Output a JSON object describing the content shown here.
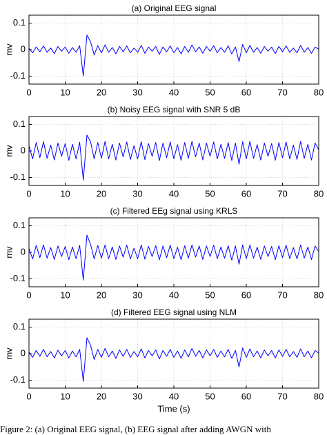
{
  "chart_data": [
    {
      "type": "line",
      "title": "(a) Original EEG signal",
      "ylabel": "mv",
      "color": "#0000ff",
      "grid": true,
      "x": [
        0,
        1,
        2,
        3,
        4,
        5,
        6,
        7,
        8,
        9,
        10,
        11,
        12,
        13,
        14,
        15,
        16,
        17,
        18,
        19,
        20,
        21,
        22,
        23,
        24,
        25,
        26,
        27,
        28,
        29,
        30,
        31,
        32,
        33,
        34,
        35,
        36,
        37,
        38,
        39,
        40,
        41,
        42,
        43,
        44,
        45,
        46,
        47,
        48,
        49,
        50,
        51,
        52,
        53,
        54,
        55,
        56,
        57,
        58,
        59,
        60,
        61,
        62,
        63,
        64,
        65,
        66,
        67,
        68,
        69,
        70,
        71,
        72,
        73,
        74,
        75,
        76,
        77,
        78,
        79,
        80
      ],
      "values": [
        0.005,
        -0.012,
        0.01,
        -0.008,
        0.014,
        -0.01,
        0.006,
        -0.015,
        0.012,
        -0.006,
        0.01,
        -0.014,
        0.008,
        -0.01,
        0.015,
        -0.1,
        0.055,
        0.03,
        -0.02,
        0.015,
        -0.012,
        0.018,
        -0.01,
        0.008,
        -0.016,
        0.012,
        -0.008,
        0.014,
        -0.012,
        0.006,
        -0.01,
        0.016,
        -0.014,
        0.01,
        -0.006,
        0.012,
        -0.018,
        0.01,
        -0.008,
        0.014,
        -0.012,
        0.008,
        -0.016,
        0.012,
        -0.01,
        0.018,
        -0.008,
        0.01,
        -0.014,
        0.012,
        -0.006,
        0.015,
        -0.012,
        0.008,
        -0.01,
        0.014,
        -0.016,
        0.01,
        -0.045,
        0.02,
        -0.012,
        0.016,
        -0.01,
        0.008,
        -0.014,
        0.012,
        -0.006,
        0.01,
        -0.015,
        0.012,
        -0.008,
        0.014,
        -0.01,
        0.006,
        -0.012,
        0.016,
        -0.01,
        0.008,
        -0.014,
        0.01,
        0.002
      ],
      "xlim": [
        0,
        80
      ],
      "xticks": [
        0,
        10,
        20,
        30,
        40,
        50,
        60,
        70,
        80
      ],
      "ylim": [
        -0.13,
        0.13
      ],
      "yticks": [
        -0.1,
        0,
        0.1
      ]
    },
    {
      "type": "line",
      "title": "(b) Noisy EEG signal with SNR 5 dB",
      "ylabel": "mv",
      "color": "#0000ff",
      "grid": true,
      "x": [
        0,
        1,
        2,
        3,
        4,
        5,
        6,
        7,
        8,
        9,
        10,
        11,
        12,
        13,
        14,
        15,
        16,
        17,
        18,
        19,
        20,
        21,
        22,
        23,
        24,
        25,
        26,
        27,
        28,
        29,
        30,
        31,
        32,
        33,
        34,
        35,
        36,
        37,
        38,
        39,
        40,
        41,
        42,
        43,
        44,
        45,
        46,
        47,
        48,
        49,
        50,
        51,
        52,
        53,
        54,
        55,
        56,
        57,
        58,
        59,
        60,
        61,
        62,
        63,
        64,
        65,
        66,
        67,
        68,
        69,
        70,
        71,
        72,
        73,
        74,
        75,
        76,
        77,
        78,
        79,
        80
      ],
      "values": [
        0.02,
        -0.03,
        0.032,
        -0.025,
        0.035,
        -0.028,
        0.022,
        -0.034,
        0.03,
        -0.02,
        0.028,
        -0.035,
        0.025,
        -0.03,
        0.033,
        -0.11,
        0.06,
        0.035,
        -0.03,
        0.032,
        -0.028,
        0.036,
        -0.03,
        0.025,
        -0.034,
        0.03,
        -0.022,
        0.034,
        -0.032,
        0.02,
        -0.03,
        0.035,
        -0.033,
        0.028,
        -0.02,
        0.032,
        -0.036,
        0.03,
        -0.025,
        0.034,
        -0.03,
        0.024,
        -0.035,
        0.032,
        -0.028,
        0.036,
        -0.022,
        0.03,
        -0.034,
        0.03,
        -0.02,
        0.034,
        -0.03,
        0.025,
        -0.028,
        0.032,
        -0.036,
        0.03,
        -0.05,
        0.035,
        -0.03,
        0.036,
        -0.028,
        0.024,
        -0.034,
        0.03,
        -0.02,
        0.028,
        -0.035,
        0.032,
        -0.025,
        0.034,
        -0.03,
        0.022,
        -0.032,
        0.036,
        -0.028,
        0.025,
        -0.034,
        0.03,
        0.005
      ],
      "xlim": [
        0,
        80
      ],
      "xticks": [
        0,
        10,
        20,
        30,
        40,
        50,
        60,
        70,
        80
      ],
      "ylim": [
        -0.13,
        0.13
      ],
      "yticks": [
        -0.1,
        0,
        0.1
      ]
    },
    {
      "type": "line",
      "title": "(c) Filtered EEg signal using KRLS",
      "ylabel": "mv",
      "color": "#0000ff",
      "grid": true,
      "x": [
        0,
        1,
        2,
        3,
        4,
        5,
        6,
        7,
        8,
        9,
        10,
        11,
        12,
        13,
        14,
        15,
        16,
        17,
        18,
        19,
        20,
        21,
        22,
        23,
        24,
        25,
        26,
        27,
        28,
        29,
        30,
        31,
        32,
        33,
        34,
        35,
        36,
        37,
        38,
        39,
        40,
        41,
        42,
        43,
        44,
        45,
        46,
        47,
        48,
        49,
        50,
        51,
        52,
        53,
        54,
        55,
        56,
        57,
        58,
        59,
        60,
        61,
        62,
        63,
        64,
        65,
        66,
        67,
        68,
        69,
        70,
        71,
        72,
        73,
        74,
        75,
        76,
        77,
        78,
        79,
        80
      ],
      "values": [
        0.015,
        -0.025,
        0.026,
        -0.02,
        0.028,
        -0.022,
        0.018,
        -0.027,
        0.024,
        -0.016,
        0.022,
        -0.028,
        0.02,
        -0.024,
        0.026,
        -0.105,
        0.065,
        0.03,
        -0.025,
        0.026,
        -0.022,
        0.028,
        -0.024,
        0.02,
        -0.027,
        0.024,
        -0.018,
        0.027,
        -0.025,
        0.016,
        -0.024,
        0.028,
        -0.026,
        0.022,
        -0.016,
        0.025,
        -0.028,
        0.024,
        -0.02,
        0.027,
        -0.024,
        0.019,
        -0.028,
        0.025,
        -0.022,
        0.028,
        -0.018,
        0.024,
        -0.027,
        0.024,
        -0.016,
        0.027,
        -0.024,
        0.02,
        -0.022,
        0.025,
        -0.03,
        0.024,
        -0.045,
        0.028,
        -0.024,
        0.028,
        -0.022,
        0.019,
        -0.027,
        0.024,
        -0.016,
        0.022,
        -0.028,
        0.025,
        -0.02,
        0.027,
        -0.024,
        0.018,
        -0.025,
        0.028,
        -0.022,
        0.02,
        -0.027,
        0.024,
        0.003
      ],
      "xlim": [
        0,
        80
      ],
      "xticks": [
        0,
        10,
        20,
        30,
        40,
        50,
        60,
        70,
        80
      ],
      "ylim": [
        -0.13,
        0.13
      ],
      "yticks": [
        -0.1,
        0,
        0.1
      ]
    },
    {
      "type": "line",
      "title": "(d) Filtered EEG signal using NLM",
      "ylabel": "mv",
      "xlabel": "Time (s)",
      "color": "#0000ff",
      "grid": true,
      "x": [
        0,
        1,
        2,
        3,
        4,
        5,
        6,
        7,
        8,
        9,
        10,
        11,
        12,
        13,
        14,
        15,
        16,
        17,
        18,
        19,
        20,
        21,
        22,
        23,
        24,
        25,
        26,
        27,
        28,
        29,
        30,
        31,
        32,
        33,
        34,
        35,
        36,
        37,
        38,
        39,
        40,
        41,
        42,
        43,
        44,
        45,
        46,
        47,
        48,
        49,
        50,
        51,
        52,
        53,
        54,
        55,
        56,
        57,
        58,
        59,
        60,
        61,
        62,
        63,
        64,
        65,
        66,
        67,
        68,
        69,
        70,
        71,
        72,
        73,
        74,
        75,
        76,
        77,
        78,
        79,
        80
      ],
      "values": [
        0.006,
        -0.014,
        0.012,
        -0.01,
        0.016,
        -0.012,
        0.008,
        -0.016,
        0.013,
        -0.008,
        0.012,
        -0.016,
        0.01,
        -0.012,
        0.016,
        -0.105,
        0.06,
        0.032,
        -0.022,
        0.016,
        -0.014,
        0.02,
        -0.012,
        0.01,
        -0.018,
        0.014,
        -0.01,
        0.016,
        -0.014,
        0.008,
        -0.012,
        0.018,
        -0.016,
        0.012,
        -0.008,
        0.014,
        -0.02,
        0.012,
        -0.01,
        0.016,
        -0.014,
        0.01,
        -0.018,
        0.014,
        -0.012,
        0.02,
        -0.01,
        0.012,
        -0.016,
        0.014,
        -0.008,
        0.016,
        -0.014,
        0.01,
        -0.012,
        0.016,
        -0.018,
        0.012,
        -0.05,
        0.022,
        -0.014,
        0.018,
        -0.012,
        0.01,
        -0.016,
        0.014,
        -0.008,
        0.012,
        -0.016,
        0.014,
        -0.01,
        0.016,
        -0.012,
        0.008,
        -0.014,
        0.018,
        -0.012,
        0.01,
        -0.016,
        0.012,
        0.002
      ],
      "xlim": [
        0,
        80
      ],
      "xticks": [
        0,
        10,
        20,
        30,
        40,
        50,
        60,
        70,
        80
      ],
      "ylim": [
        -0.13,
        0.13
      ],
      "yticks": [
        -0.1,
        0,
        0.1
      ]
    }
  ],
  "caption": "Figure 2: (a) Original EEG signal, (b) EEG signal after adding AWGN with"
}
